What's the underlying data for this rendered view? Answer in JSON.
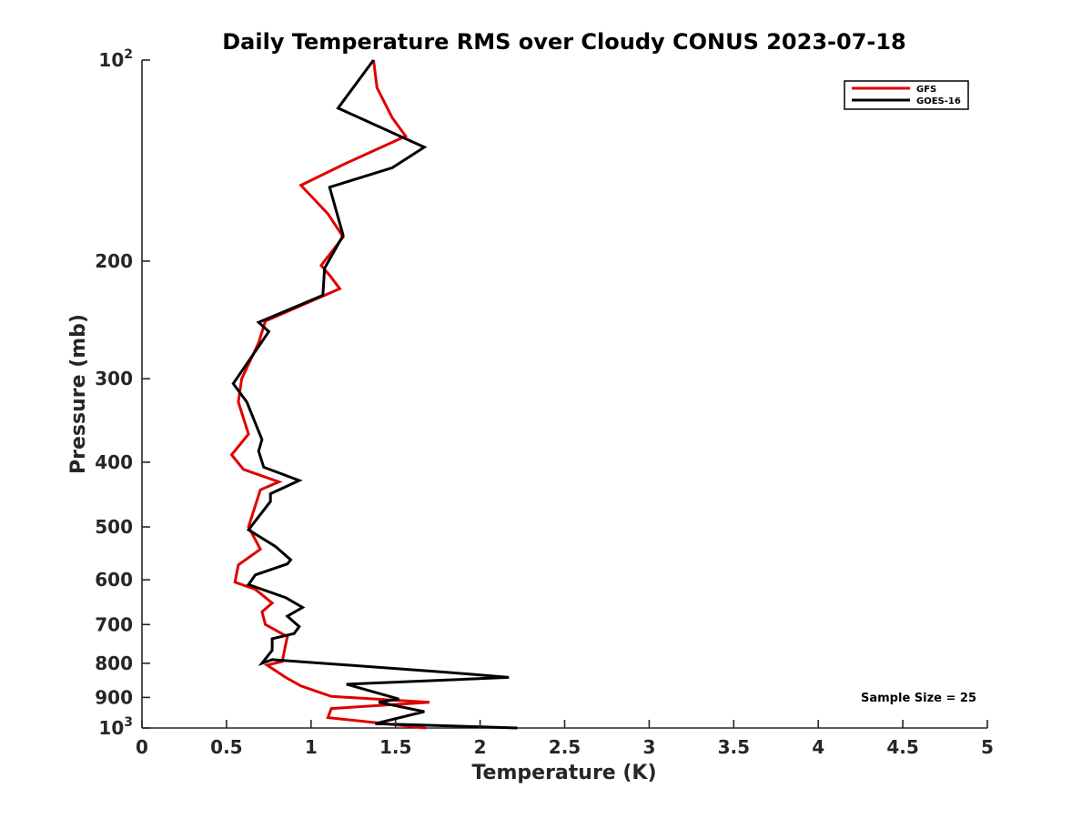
{
  "chart_data": {
    "type": "line",
    "title": "Daily Temperature RMS over Cloudy CONUS 2023-07-18",
    "xlabel": "Temperature (K)",
    "ylabel": "Pressure (mb)",
    "xlim": [
      0,
      5
    ],
    "ylim": [
      100,
      1000
    ],
    "y_scale": "log",
    "y_reversed": true,
    "grid": false,
    "legend_position": "top-right",
    "x_ticks": [
      "0",
      "0.5",
      "1",
      "1.5",
      "2",
      "2.5",
      "3",
      "3.5",
      "4",
      "4.5",
      "5"
    ],
    "x_tick_values": [
      0,
      0.5,
      1,
      1.5,
      2,
      2.5,
      3,
      3.5,
      4,
      4.5,
      5
    ],
    "y_ticks": [
      {
        "value": 100,
        "base": "10",
        "exp": "2"
      },
      {
        "value": 200,
        "label": "200"
      },
      {
        "value": 300,
        "label": "300"
      },
      {
        "value": 400,
        "label": "400"
      },
      {
        "value": 500,
        "label": "500"
      },
      {
        "value": 600,
        "label": "600"
      },
      {
        "value": 700,
        "label": "700"
      },
      {
        "value": 800,
        "label": "800"
      },
      {
        "value": 900,
        "label": "900"
      },
      {
        "value": 1000,
        "base": "10",
        "exp": "3"
      }
    ],
    "annotation": "Sample Size = 25",
    "series": [
      {
        "name": "GFS",
        "color": "#e00000",
        "points": [
          [
            1.37,
            100
          ],
          [
            1.39,
            110
          ],
          [
            1.48,
            122
          ],
          [
            1.56,
            130
          ],
          [
            1.2,
            143
          ],
          [
            0.94,
            154
          ],
          [
            1.1,
            170
          ],
          [
            1.19,
            184
          ],
          [
            1.06,
            203
          ],
          [
            1.11,
            210
          ],
          [
            1.17,
            220
          ],
          [
            0.73,
            246
          ],
          [
            0.69,
            265
          ],
          [
            0.59,
            300
          ],
          [
            0.57,
            325
          ],
          [
            0.63,
            363
          ],
          [
            0.53,
            390
          ],
          [
            0.6,
            410
          ],
          [
            0.81,
            428
          ],
          [
            0.7,
            440
          ],
          [
            0.63,
            500
          ],
          [
            0.7,
            540
          ],
          [
            0.57,
            570
          ],
          [
            0.55,
            605
          ],
          [
            0.67,
            620
          ],
          [
            0.77,
            650
          ],
          [
            0.71,
            670
          ],
          [
            0.73,
            700
          ],
          [
            0.86,
            730
          ],
          [
            0.85,
            750
          ],
          [
            0.83,
            795
          ],
          [
            0.74,
            805
          ],
          [
            0.85,
            840
          ],
          [
            0.94,
            865
          ],
          [
            1.12,
            897
          ],
          [
            1.7,
            915
          ],
          [
            1.12,
            935
          ],
          [
            1.1,
            965
          ],
          [
            1.68,
            1000
          ]
        ]
      },
      {
        "name": "GOES-16",
        "color": "#000000",
        "points": [
          [
            1.37,
            100
          ],
          [
            1.16,
            118
          ],
          [
            1.67,
            135
          ],
          [
            1.48,
            145
          ],
          [
            1.11,
            155
          ],
          [
            1.19,
            183
          ],
          [
            1.08,
            205
          ],
          [
            1.07,
            225
          ],
          [
            0.69,
            247
          ],
          [
            0.75,
            255
          ],
          [
            0.56,
            300
          ],
          [
            0.54,
            305
          ],
          [
            0.62,
            325
          ],
          [
            0.71,
            370
          ],
          [
            0.69,
            385
          ],
          [
            0.72,
            407
          ],
          [
            0.93,
            426
          ],
          [
            0.76,
            446
          ],
          [
            0.76,
            458
          ],
          [
            0.63,
            505
          ],
          [
            0.79,
            535
          ],
          [
            0.88,
            560
          ],
          [
            0.86,
            568
          ],
          [
            0.67,
            590
          ],
          [
            0.63,
            610
          ],
          [
            0.85,
            638
          ],
          [
            0.95,
            660
          ],
          [
            0.86,
            680
          ],
          [
            0.93,
            705
          ],
          [
            0.9,
            722
          ],
          [
            0.77,
            735
          ],
          [
            0.77,
            765
          ],
          [
            0.71,
            800
          ],
          [
            0.77,
            790
          ],
          [
            1.8,
            825
          ],
          [
            2.17,
            840
          ],
          [
            1.21,
            860
          ],
          [
            1.52,
            905
          ],
          [
            1.4,
            915
          ],
          [
            1.67,
            945
          ],
          [
            1.38,
            985
          ],
          [
            2.22,
            1000
          ]
        ]
      }
    ]
  }
}
